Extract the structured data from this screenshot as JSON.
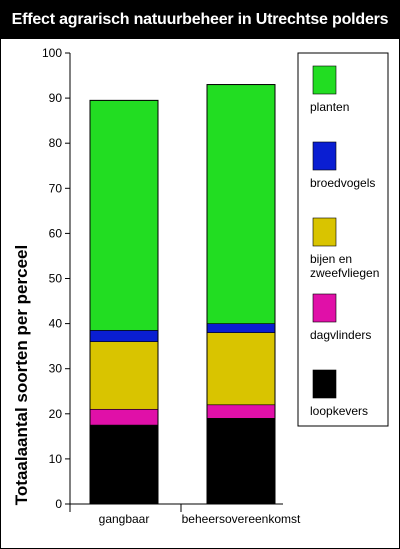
{
  "colors": {
    "planten": "#22dd22",
    "broedvogels": "#0a1ed2",
    "bijen_en_zweefvliegen": "#d9c400",
    "dagvlinders": "#e010a8",
    "loopkevers": "#000000"
  },
  "chart_data": {
    "type": "bar",
    "stacked": true,
    "title": "Effect agrarisch natuurbeheer in Utrechtse polders",
    "xlabel": "",
    "ylabel": "Totaalaantal soorten per perceel",
    "ylim": [
      0,
      100
    ],
    "yticks": [
      0,
      10,
      20,
      30,
      40,
      50,
      60,
      70,
      80,
      90,
      100
    ],
    "categories": [
      "gangbaar",
      "beheersovereenkomst"
    ],
    "legend_position": "right",
    "series": [
      {
        "name": "loopkevers",
        "color_key": "loopkevers",
        "values": [
          17.5,
          19
        ]
      },
      {
        "name": "dagvlinders",
        "color_key": "dagvlinders",
        "values": [
          3.5,
          3
        ]
      },
      {
        "name": "bijen en zweefvliegen",
        "legend_lines": [
          "bijen en",
          "zweefvliegen"
        ],
        "color_key": "bijen_en_zweefvliegen",
        "values": [
          15,
          16
        ]
      },
      {
        "name": "broedvogels",
        "color_key": "broedvogels",
        "values": [
          2.5,
          2
        ]
      },
      {
        "name": "planten",
        "color_key": "planten",
        "values": [
          51,
          53
        ]
      }
    ]
  }
}
